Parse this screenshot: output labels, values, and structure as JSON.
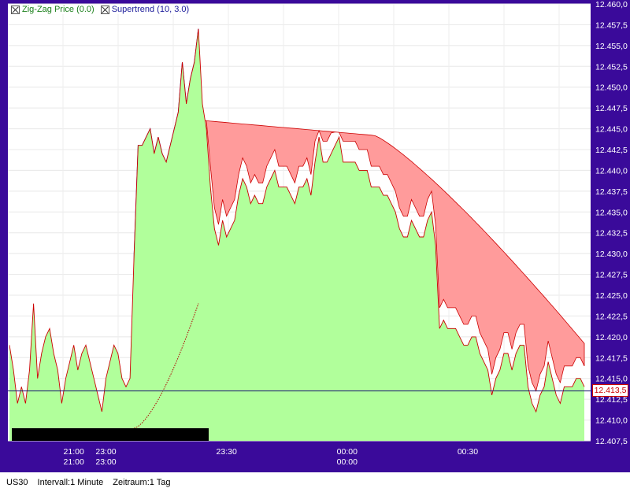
{
  "legend": {
    "zigzag_label": "Zig-Zag Price (0.0)",
    "supertrend_label": "Supertrend (10, 3.0)"
  },
  "price_tag": "12.413,5",
  "footer": {
    "symbol": "US30",
    "interval": "Intervall:1 Minute",
    "period": "Zeitraum:1 Tag"
  },
  "colors": {
    "frame": "#3a0a9a",
    "price_fill": "#b1ff9b",
    "price_line": "#cc0000",
    "bull_fill": "#c48a4e",
    "bear_fill": "#ff9b9b"
  },
  "chart_data": {
    "type": "area",
    "ylim": [
      12407.5,
      12460.0
    ],
    "y_ticks": [
      "12.407,5",
      "12.410,0",
      "12.412,5",
      "12.415,0",
      "12.417,5",
      "12.420,0",
      "12.422,5",
      "12.425,0",
      "12.427,5",
      "12.430,0",
      "12.432,5",
      "12.435,0",
      "12.437,5",
      "12.440,0",
      "12.442,5",
      "12.445,0",
      "12.447,5",
      "12.450,0",
      "12.452,5",
      "12.455,0",
      "12.457,5",
      "12.460,0"
    ],
    "x_ticks": [
      {
        "label": "21:00",
        "sub": "21:00",
        "at": 16
      },
      {
        "label": "23:00",
        "sub": "23:00",
        "at": 24
      },
      {
        "label": "23:30",
        "sub": "",
        "at": 54
      },
      {
        "label": "00:00",
        "sub": "00:00",
        "at": 84
      },
      {
        "label": "00:30",
        "sub": "",
        "at": 114
      }
    ],
    "current_price": 12413.5,
    "series": [
      {
        "name": "Zig-Zag Price (0.0)",
        "values": [
          12419,
          12416,
          12412,
          12414,
          12412,
          12416,
          12424,
          12415,
          12418,
          12420,
          12421,
          12418,
          12416,
          12412,
          12415,
          12417,
          12419,
          12416,
          12418,
          12419,
          12417,
          12415,
          12413,
          12411,
          12415,
          12417,
          12419,
          12418,
          12415,
          12414,
          12415,
          12430,
          12443,
          12443,
          12444,
          12445,
          12442,
          12444,
          12442,
          12441,
          12443,
          12445,
          12447,
          12453,
          12448,
          12451,
          12453,
          12457,
          12448,
          12445,
          12438,
          12433,
          12431,
          12434,
          12432,
          12433,
          12434,
          12437,
          12439,
          12438,
          12436,
          12437,
          12436,
          12436,
          12438,
          12439,
          12440,
          12438,
          12438,
          12438,
          12437,
          12436,
          12438,
          12438,
          12439,
          12437,
          12441,
          12444,
          12441,
          12441,
          12442,
          12443,
          12444,
          12441,
          12441,
          12441,
          12441,
          12440,
          12440,
          12440,
          12438,
          12438,
          12438,
          12437,
          12437,
          12436,
          12435,
          12433,
          12432,
          12432,
          12434,
          12433,
          12432,
          12432,
          12434,
          12435,
          12431,
          12421,
          12422,
          12421,
          12421,
          12421,
          12420,
          12419,
          12419,
          12420,
          12420,
          12418,
          12417,
          12416,
          12413,
          12415,
          12416,
          12418,
          12418,
          12416,
          12418,
          12419,
          12419,
          12414,
          12412,
          12411,
          12413,
          12414,
          12417,
          12415,
          12413,
          12412,
          12414,
          12414,
          12414,
          12415,
          12415,
          12414
        ]
      }
    ]
  }
}
